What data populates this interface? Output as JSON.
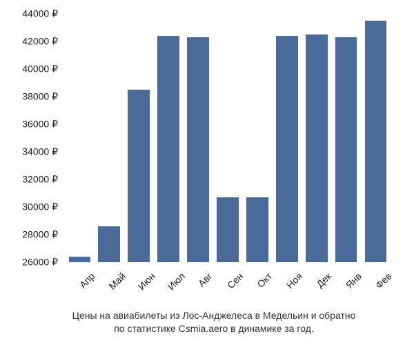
{
  "chart": {
    "type": "bar",
    "bar_color": "#4a6a99",
    "background_color": "#ffffff",
    "text_color": "#222222",
    "font_family": "Arial",
    "tick_fontsize": 14,
    "caption_fontsize": 14,
    "bar_width_ratio": 0.74,
    "x_label_rotation_deg": -45,
    "ylim": [
      26000,
      44000
    ],
    "ytick_step": 2000,
    "y_suffix": " ₽",
    "y_ticks": [
      26000,
      28000,
      30000,
      32000,
      34000,
      36000,
      38000,
      40000,
      42000,
      44000
    ],
    "categories": [
      "Апр",
      "Май",
      "Июн",
      "Июл",
      "Авг",
      "Сен",
      "Окт",
      "Ноя",
      "Дек",
      "Янв",
      "Фев"
    ],
    "values": [
      26400,
      28600,
      38500,
      42400,
      42300,
      30700,
      30700,
      42400,
      42500,
      42300,
      43500
    ],
    "caption_line1": "Цены на авиабилеты из Лос-Анджелеса в Медельин и обратно",
    "caption_line2": "по статистике Csmia.aero в динамике за год."
  }
}
